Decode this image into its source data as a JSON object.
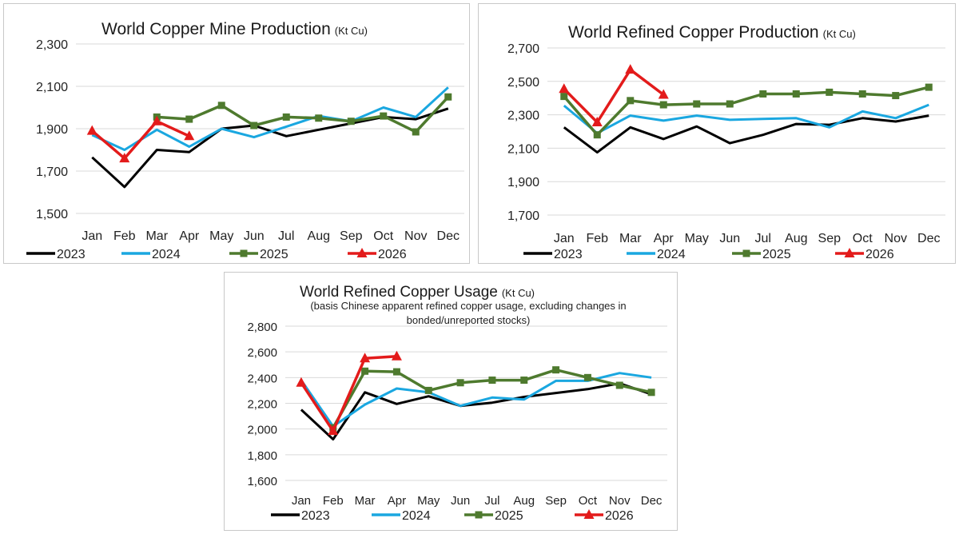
{
  "colors": {
    "2023": "#000000",
    "2024": "#1aa7e0",
    "2025": "#4e7a2e",
    "2026": "#e31b1b"
  },
  "chart_data": [
    {
      "type": "line",
      "title": "World Copper Mine Production",
      "unit": "(Kt Cu)",
      "subtitle": "",
      "categories": [
        "Jan",
        "Feb",
        "Mar",
        "Apr",
        "May",
        "Jun",
        "Jul",
        "Aug",
        "Sep",
        "Oct",
        "Nov",
        "Dec"
      ],
      "ylim": [
        1500,
        2300
      ],
      "yticks": [
        1500,
        1700,
        1900,
        2100,
        2300
      ],
      "ytick_labels": [
        "1,500",
        "1,700",
        "1,900",
        "2,100",
        "2,300"
      ],
      "grid": true,
      "legend": "bottom",
      "series": [
        {
          "name": "2023",
          "marker": "none",
          "values": [
            1765,
            1625,
            1800,
            1790,
            1900,
            1915,
            1865,
            1895,
            1925,
            1955,
            1945,
            1995
          ]
        },
        {
          "name": "2024",
          "marker": "none",
          "values": [
            1870,
            1800,
            1895,
            1815,
            1900,
            1860,
            1910,
            1960,
            1935,
            2000,
            1955,
            2095
          ]
        },
        {
          "name": "2025",
          "marker": "square",
          "values": [
            null,
            null,
            1955,
            1945,
            2010,
            1915,
            1955,
            1950,
            1935,
            1960,
            1885,
            2050
          ]
        },
        {
          "name": "2026",
          "marker": "triangle",
          "values": [
            1890,
            1760,
            1935,
            1865,
            null,
            null,
            null,
            null,
            null,
            null,
            null,
            null
          ]
        }
      ]
    },
    {
      "type": "line",
      "title": "World Refined Copper Production",
      "unit": "(Kt Cu)",
      "subtitle": "",
      "categories": [
        "Jan",
        "Feb",
        "Mar",
        "Apr",
        "May",
        "Jun",
        "Jul",
        "Aug",
        "Sep",
        "Oct",
        "Nov",
        "Dec"
      ],
      "ylim": [
        1700,
        2700
      ],
      "yticks": [
        1700,
        1900,
        2100,
        2300,
        2500,
        2700
      ],
      "ytick_labels": [
        "1,700",
        "1,900",
        "2,100",
        "2,300",
        "2,500",
        "2,700"
      ],
      "grid": true,
      "legend": "bottom",
      "series": [
        {
          "name": "2023",
          "marker": "none",
          "values": [
            2225,
            2075,
            2225,
            2155,
            2230,
            2130,
            2180,
            2245,
            2240,
            2280,
            2260,
            2295
          ]
        },
        {
          "name": "2024",
          "marker": "none",
          "values": [
            2355,
            2190,
            2295,
            2265,
            2295,
            2270,
            2275,
            2280,
            2225,
            2320,
            2280,
            2360
          ]
        },
        {
          "name": "2025",
          "marker": "square",
          "values": [
            2410,
            2180,
            2385,
            2360,
            2365,
            2365,
            2425,
            2425,
            2435,
            2425,
            2415,
            2465
          ]
        },
        {
          "name": "2026",
          "marker": "triangle",
          "values": [
            2455,
            2255,
            2570,
            2420,
            null,
            null,
            null,
            null,
            null,
            null,
            null,
            null
          ]
        }
      ]
    },
    {
      "type": "line",
      "title": "World Refined Copper Usage",
      "unit": "(Kt Cu)",
      "subtitle": "(basis Chinese apparent refined copper usage, excluding changes in bonded/unreported stocks)",
      "subtitle_lines": [
        "(basis Chinese apparent refined copper usage, excluding changes in",
        "bonded/unreported stocks)"
      ],
      "categories": [
        "Jan",
        "Feb",
        "Mar",
        "Apr",
        "May",
        "Jun",
        "Jul",
        "Aug",
        "Sep",
        "Oct",
        "Nov",
        "Dec"
      ],
      "ylim": [
        1600,
        2800
      ],
      "yticks": [
        1600,
        1800,
        2000,
        2200,
        2400,
        2600,
        2800
      ],
      "ytick_labels": [
        "1,600",
        "1,800",
        "2,000",
        "2,200",
        "2,400",
        "2,600",
        "2,800"
      ],
      "grid": true,
      "legend": "bottom",
      "series": [
        {
          "name": "2023",
          "marker": "none",
          "values": [
            2150,
            1920,
            2285,
            2195,
            2255,
            2180,
            2205,
            2250,
            2280,
            2310,
            2355,
            2270
          ]
        },
        {
          "name": "2024",
          "marker": "none",
          "values": [
            2380,
            2020,
            2190,
            2315,
            2285,
            2180,
            2245,
            2230,
            2375,
            2375,
            2435,
            2400
          ]
        },
        {
          "name": "2025",
          "marker": "square",
          "values": [
            null,
            2010,
            2450,
            2445,
            2300,
            2360,
            2380,
            2380,
            2460,
            2400,
            2340,
            2285
          ]
        },
        {
          "name": "2026",
          "marker": "triangle",
          "values": [
            2360,
            1985,
            2550,
            2565,
            null,
            null,
            null,
            null,
            null,
            null,
            null,
            null
          ]
        }
      ]
    }
  ]
}
